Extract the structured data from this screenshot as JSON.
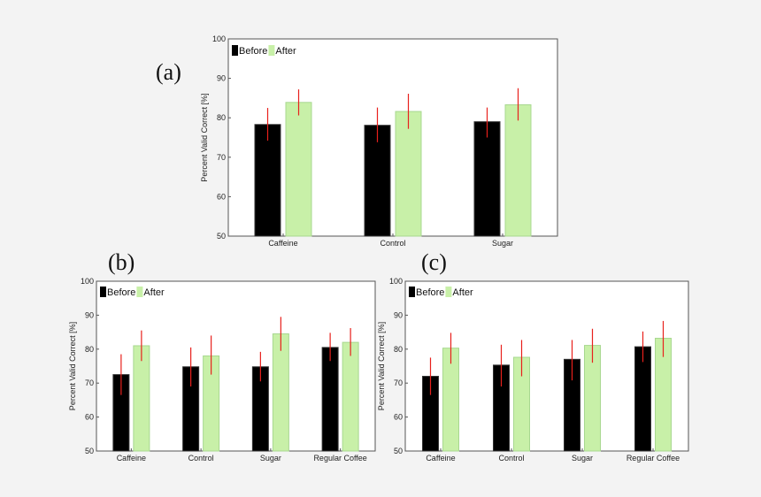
{
  "colors": {
    "background": "#f3f3f3",
    "plot_bg": "#ffffff",
    "before": "#000000",
    "after": "#c8f0a8",
    "after_edge": "#a8d890",
    "error_bar": "#e8201c",
    "axis": "#555555"
  },
  "chart_data": [
    {
      "type": "bar",
      "panel_label": "(a)",
      "ylabel": "Percent Valid Correct [%]",
      "ylim": [
        50,
        100
      ],
      "yticks": [
        "50",
        "60",
        "70",
        "80",
        "90",
        "100"
      ],
      "legend": [
        "Before",
        "After"
      ],
      "legend_placement": "top-left",
      "categories": [
        "Caffeine",
        "Control",
        "Sugar"
      ],
      "series": [
        {
          "name": "Before",
          "values": [
            78.3,
            78.1,
            79.0
          ],
          "err_low": [
            74.2,
            73.8,
            75.0
          ],
          "err_high": [
            82.5,
            82.6,
            82.6
          ]
        },
        {
          "name": "After",
          "values": [
            83.9,
            81.6,
            83.3
          ],
          "err_low": [
            80.6,
            77.2,
            79.3
          ],
          "err_high": [
            87.2,
            86.1,
            87.5
          ]
        }
      ]
    },
    {
      "type": "bar",
      "panel_label": "(b)",
      "ylabel": "Percent Valid Correct [%]",
      "ylim": [
        50,
        100
      ],
      "yticks": [
        "50",
        "60",
        "70",
        "80",
        "90",
        "100"
      ],
      "legend": [
        "Before",
        "After"
      ],
      "legend_placement": "top-left",
      "categories": [
        "Caffeine",
        "Control",
        "Sugar",
        "Regular Coffee"
      ],
      "series": [
        {
          "name": "Before",
          "values": [
            72.5,
            74.8,
            74.8,
            80.5
          ],
          "err_low": [
            66.5,
            69.0,
            70.5,
            76.5
          ],
          "err_high": [
            78.5,
            80.5,
            79.2,
            84.8
          ]
        },
        {
          "name": "After",
          "values": [
            81.0,
            78.0,
            84.5,
            82.0
          ],
          "err_low": [
            76.5,
            72.5,
            79.5,
            78.0
          ],
          "err_high": [
            85.5,
            84.0,
            89.5,
            86.2
          ]
        }
      ]
    },
    {
      "type": "bar",
      "panel_label": "(c)",
      "ylabel": "Percent Valid Correct [%]",
      "ylim": [
        50,
        100
      ],
      "yticks": [
        "50",
        "60",
        "70",
        "80",
        "90",
        "100"
      ],
      "legend": [
        "Before",
        "After"
      ],
      "legend_placement": "top-left",
      "categories": [
        "Caffeine",
        "Control",
        "Sugar",
        "Regular Coffee"
      ],
      "series": [
        {
          "name": "Before",
          "values": [
            72.0,
            75.3,
            77.0,
            80.7
          ],
          "err_low": [
            66.5,
            69.0,
            70.8,
            76.2
          ],
          "err_high": [
            77.5,
            81.3,
            82.7,
            85.2
          ]
        },
        {
          "name": "After",
          "values": [
            80.3,
            77.6,
            81.1,
            83.2
          ],
          "err_low": [
            75.7,
            72.0,
            76.0,
            77.7
          ],
          "err_high": [
            84.8,
            82.7,
            86.0,
            88.3
          ]
        }
      ]
    }
  ]
}
